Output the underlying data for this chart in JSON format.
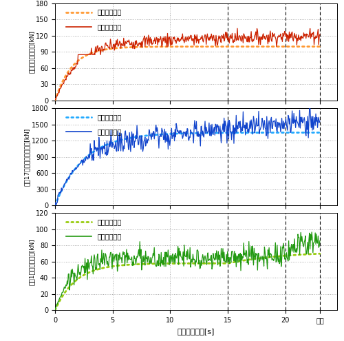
{
  "xlabel": "ブレーキ時間[s]",
  "xticks": [
    0,
    5,
    10,
    15,
    20,
    23.0
  ],
  "xtick_labels": [
    "0",
    "5",
    "10",
    "15",
    "20",
    "停止"
  ],
  "xlim": [
    0,
    24.5
  ],
  "vlines": [
    15.0,
    20.0,
    23.0
  ],
  "subplot1": {
    "ylabel": "機鈦車ブレーキ力[kN]",
    "ylim": [
      0,
      180
    ],
    "yticks": [
      0,
      30,
      60,
      90,
      120,
      150,
      180
    ],
    "solid_color": "#cc2200",
    "dotted_color": "#ff9933",
    "legend_dot": "点線：理論値",
    "legend_solid": "実線：推定値",
    "theory_level": 100,
    "theory_tau": 1.5,
    "solid_level": 107,
    "solid_tau": 2.0,
    "solid_noise": 6,
    "solid_trend": 0.6
  },
  "subplot2": {
    "ylabel": "貨車17両合計ブレーキ力[kN]",
    "ylim": [
      0,
      1800
    ],
    "yticks": [
      0,
      300,
      600,
      900,
      1200,
      1500,
      1800
    ],
    "solid_color": "#1144cc",
    "dotted_color": "#22aaff",
    "legend_dot": "点線：理論値",
    "legend_solid": "実線：推定値",
    "theory_level": 1350,
    "theory_tau": 2.5,
    "solid_level": 1100,
    "solid_tau": 2.0,
    "solid_noise": 80,
    "solid_trend": 20
  },
  "subplot3": {
    "ylabel": "貨車1両ブレーキ力[kN]",
    "ylim": [
      0,
      120
    ],
    "yticks": [
      0,
      20,
      40,
      60,
      80,
      100,
      120
    ],
    "solid_color": "#229911",
    "dotted_color": "#99cc11",
    "legend_dot": "点線：理論値",
    "legend_solid": "実線：推定値",
    "theory_level": 65,
    "theory_tau": 1.8,
    "solid_level": 65,
    "solid_tau": 2.5,
    "solid_noise": 7,
    "solid_trend": 1.0
  }
}
